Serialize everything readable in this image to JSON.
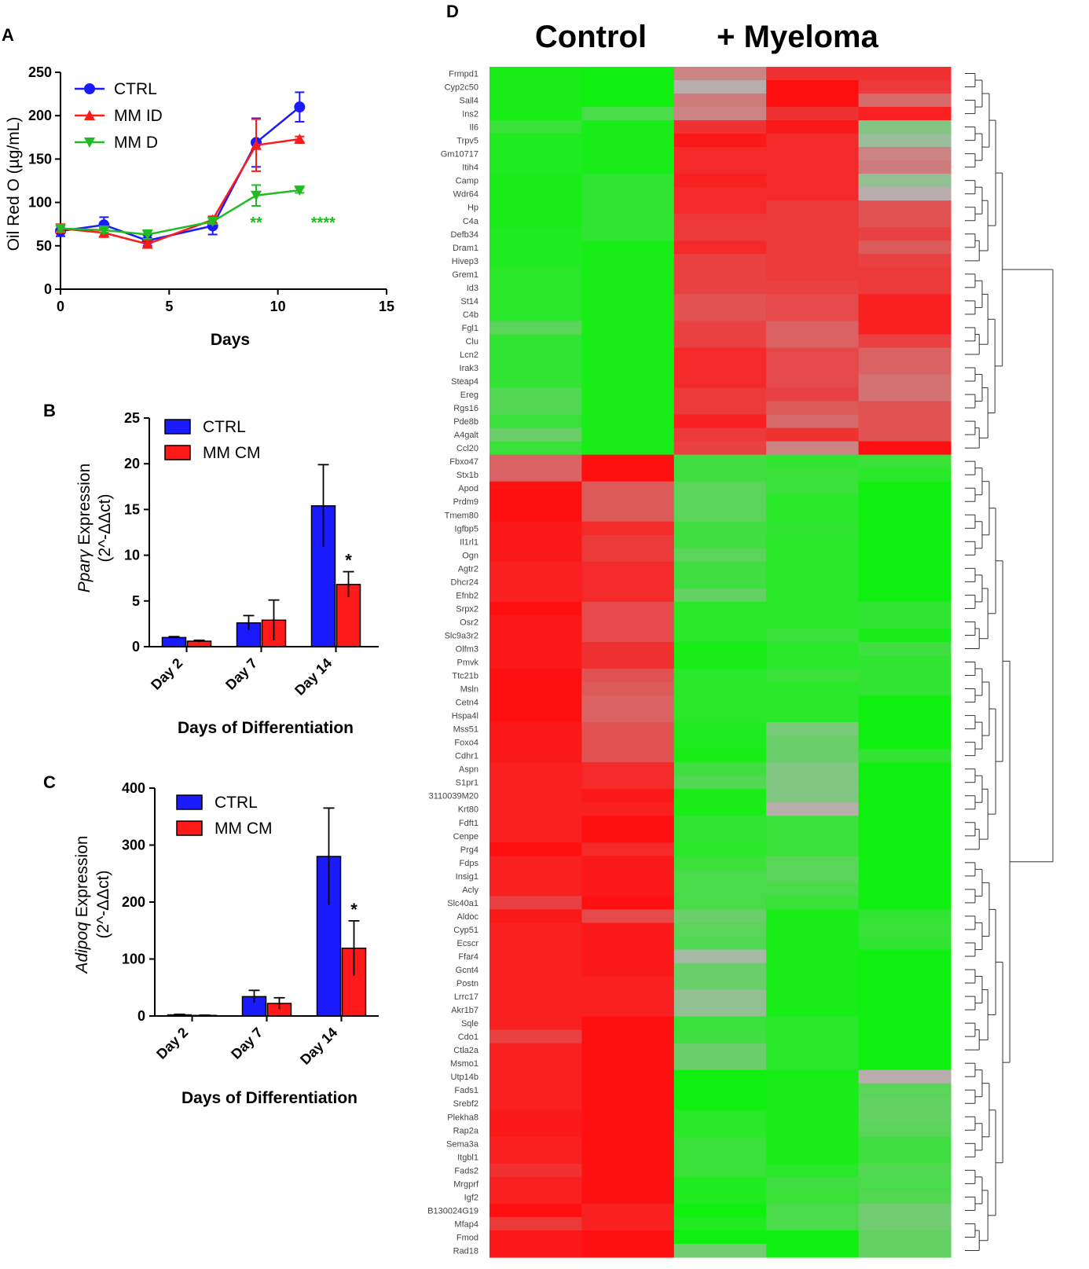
{
  "panel_labels": {
    "a": "A",
    "b": "B",
    "c": "C",
    "d": "D"
  },
  "colors": {
    "ctrl": "#1a1aff",
    "mm_id": "#ff1a1a",
    "mm_d": "#22bb22",
    "mm_cm": "#ff1a1a",
    "heat_high": "#ff1010",
    "heat_low": "#10f010",
    "heat_mid": "#b4b4b4"
  },
  "chart_data": [
    {
      "id": "A",
      "type": "line",
      "xlabel": "Days",
      "ylabel": "Oil Red O (µg/mL)",
      "xlim": [
        0,
        15
      ],
      "ylim": [
        0,
        250
      ],
      "xticks": [
        "0",
        "5",
        "10",
        "15"
      ],
      "yticks": [
        "0",
        "50",
        "100",
        "150",
        "200",
        "250"
      ],
      "series": [
        {
          "name": "CTRL",
          "x": [
            0,
            2,
            4,
            7,
            9,
            11
          ],
          "values": [
            67,
            74,
            56,
            73,
            169,
            210
          ],
          "err": [
            6,
            9,
            6,
            10,
            28,
            17
          ]
        },
        {
          "name": "MM ID",
          "x": [
            0,
            2,
            4,
            7,
            9,
            11
          ],
          "values": [
            70,
            65,
            52,
            80,
            166,
            173
          ],
          "err": [
            5,
            5,
            4,
            4,
            30,
            3
          ]
        },
        {
          "name": "MM D",
          "x": [
            0,
            2,
            4,
            7,
            9,
            11
          ],
          "values": [
            70,
            68,
            63,
            78,
            108,
            114
          ],
          "err": [
            4,
            3,
            5,
            3,
            12,
            3
          ]
        }
      ],
      "annotations": [
        {
          "x": 9,
          "text": "**"
        },
        {
          "x": 11,
          "text": "****"
        }
      ]
    },
    {
      "id": "B",
      "type": "bar",
      "xlabel": "Days of Differentiation",
      "ylabel_gene": "Pparγ",
      "ylabel_rest": " Expression",
      "ylabel_line2": "(2^-ΔΔct)",
      "ylim": [
        0,
        25
      ],
      "yticks": [
        "0",
        "5",
        "10",
        "15",
        "20",
        "25"
      ],
      "categories": [
        "Day 2",
        "Day 7",
        "Day 14"
      ],
      "series": [
        {
          "name": "CTRL",
          "values": [
            1.0,
            2.6,
            15.4
          ],
          "err": [
            0.1,
            0.8,
            4.5
          ]
        },
        {
          "name": "MM CM",
          "values": [
            0.6,
            2.9,
            6.8
          ],
          "err": [
            0.1,
            2.2,
            1.4
          ]
        }
      ],
      "annotations": [
        {
          "category": "Day 14",
          "text": "*"
        }
      ]
    },
    {
      "id": "C",
      "type": "bar",
      "xlabel": "Days of Differentiation",
      "ylabel_gene": "Adipoq",
      "ylabel_rest": " Expression",
      "ylabel_line2": "(2^-ΔΔct)",
      "ylim": [
        0,
        400
      ],
      "yticks": [
        "0",
        "100",
        "200",
        "300",
        "400"
      ],
      "categories": [
        "Day 2",
        "Day 7",
        "Day 14"
      ],
      "series": [
        {
          "name": "CTRL",
          "values": [
            2,
            34,
            280
          ],
          "err": [
            1,
            11,
            85
          ]
        },
        {
          "name": "MM CM",
          "values": [
            1,
            22,
            119
          ],
          "err": [
            0.5,
            10,
            48
          ]
        }
      ],
      "annotations": [
        {
          "category": "Day 14",
          "text": "*"
        }
      ]
    },
    {
      "id": "D",
      "type": "heatmap",
      "groups": [
        "Control",
        "+ Myeloma"
      ],
      "columns_per_group": [
        2,
        3
      ],
      "genes": [
        "Frmpd1",
        "Cyp2c50",
        "Sall4",
        "Ins2",
        "Il6",
        "Trpv5",
        "Gm10717",
        "Itih4",
        "Camp",
        "Wdr64",
        "Hp",
        "C4a",
        "Defb34",
        "Dram1",
        "Hivep3",
        "Grem1",
        "Id3",
        "St14",
        "C4b",
        "Fgl1",
        "Clu",
        "Lcn2",
        "Irak3",
        "Steap4",
        "Ereg",
        "Rgs16",
        "Pde8b",
        "A4galt",
        "Ccl20",
        "Fbxo47",
        "Stx1b",
        "Apod",
        "Prdm9",
        "Tmem80",
        "Igfbp5",
        "Il1rl1",
        "Ogn",
        "Agtr2",
        "Dhcr24",
        "Efnb2",
        "Srpx2",
        "Osr2",
        "Slc9a3r2",
        "Olfm3",
        "Pmvk",
        "Ttc21b",
        "Msln",
        "Cetn4",
        "Hspa4l",
        "Mss51",
        "Foxo4",
        "Cdhr1",
        "Aspn",
        "S1pr1",
        "3110039M20",
        "Krt80",
        "Fdft1",
        "Cenpe",
        "Prg4",
        "Fdps",
        "Insig1",
        "Acly",
        "Slc40a1",
        "Aldoc",
        "Cyp51",
        "Ecscr",
        "Ffar4",
        "Gcnt4",
        "Postn",
        "Lrrc17",
        "Akr1b7",
        "Sqle",
        "Cdo1",
        "Ctla2a",
        "Msmo1",
        "Utp14b",
        "Fads1",
        "Srebf2",
        "Plekha8",
        "Rap2a",
        "Sema3a",
        "Itgbl1",
        "Fads2",
        "Mrgprf",
        "Igf2",
        "B130024G19",
        "Mfap4",
        "Fmod",
        "Rad18"
      ],
      "values": [
        [
          -0.95,
          -1.0,
          0.3,
          0.8,
          0.8
        ],
        [
          -0.95,
          -1.0,
          0.05,
          1.0,
          0.75
        ],
        [
          -0.95,
          -1.0,
          0.35,
          1.0,
          0.45
        ],
        [
          -0.95,
          -0.65,
          0.3,
          0.8,
          0.9
        ],
        [
          -0.75,
          -0.95,
          0.8,
          0.95,
          -0.3
        ],
        [
          -0.9,
          -0.95,
          0.95,
          0.85,
          -0.15
        ],
        [
          -0.9,
          -0.95,
          0.85,
          0.85,
          0.3
        ],
        [
          -0.9,
          -0.95,
          0.85,
          0.85,
          0.35
        ],
        [
          -0.95,
          -0.8,
          0.9,
          0.85,
          -0.2
        ],
        [
          -0.95,
          -0.8,
          0.85,
          0.85,
          0.05
        ],
        [
          -0.95,
          -0.8,
          0.85,
          0.75,
          0.6
        ],
        [
          -0.95,
          -0.8,
          0.75,
          0.75,
          0.6
        ],
        [
          -0.9,
          -0.8,
          0.75,
          0.75,
          0.7
        ],
        [
          -0.9,
          -0.95,
          0.85,
          0.75,
          0.55
        ],
        [
          -0.9,
          -0.95,
          0.7,
          0.75,
          0.7
        ],
        [
          -0.85,
          -0.95,
          0.7,
          0.75,
          0.75
        ],
        [
          -0.85,
          -0.95,
          0.7,
          0.7,
          0.75
        ],
        [
          -0.85,
          -0.95,
          0.6,
          0.65,
          0.9
        ],
        [
          -0.85,
          -0.95,
          0.6,
          0.65,
          0.9
        ],
        [
          -0.55,
          -0.95,
          0.7,
          0.5,
          0.9
        ],
        [
          -0.8,
          -0.95,
          0.7,
          0.5,
          0.7
        ],
        [
          -0.8,
          -0.95,
          0.85,
          0.65,
          0.5
        ],
        [
          -0.8,
          -0.95,
          0.85,
          0.65,
          0.5
        ],
        [
          -0.8,
          -0.95,
          0.85,
          0.65,
          0.4
        ],
        [
          -0.6,
          -0.95,
          0.75,
          0.7,
          0.4
        ],
        [
          -0.6,
          -0.95,
          0.75,
          0.55,
          0.6
        ],
        [
          -0.75,
          -0.95,
          0.9,
          0.45,
          0.6
        ],
        [
          -0.45,
          -0.95,
          0.75,
          0.8,
          0.6
        ],
        [
          -0.75,
          -0.95,
          0.7,
          0.3,
          1.0
        ],
        [
          0.5,
          1.0,
          -0.7,
          -0.8,
          -0.75
        ],
        [
          0.5,
          1.0,
          -0.7,
          -0.75,
          -0.85
        ],
        [
          1.0,
          0.55,
          -0.55,
          -0.75,
          -1.0
        ],
        [
          1.0,
          0.55,
          -0.55,
          -0.85,
          -1.0
        ],
        [
          1.0,
          0.55,
          -0.55,
          -0.85,
          -1.0
        ],
        [
          0.95,
          0.85,
          -0.7,
          -0.8,
          -1.0
        ],
        [
          0.95,
          0.75,
          -0.7,
          -0.85,
          -1.0
        ],
        [
          0.95,
          0.75,
          -0.55,
          -0.85,
          -1.0
        ],
        [
          0.9,
          0.85,
          -0.7,
          -0.85,
          -1.0
        ],
        [
          0.9,
          0.85,
          -0.7,
          -0.85,
          -1.0
        ],
        [
          0.9,
          0.85,
          -0.5,
          -0.85,
          -1.0
        ],
        [
          1.0,
          0.65,
          -0.85,
          -0.85,
          -0.8
        ],
        [
          0.95,
          0.65,
          -0.85,
          -0.85,
          -0.8
        ],
        [
          0.95,
          0.65,
          -0.85,
          -0.75,
          -0.95
        ],
        [
          0.95,
          0.8,
          -0.95,
          -0.85,
          -0.7
        ],
        [
          0.95,
          0.8,
          -0.95,
          -0.85,
          -0.8
        ],
        [
          1.0,
          0.6,
          -0.85,
          -0.75,
          -0.8
        ],
        [
          1.0,
          0.55,
          -0.85,
          -0.85,
          -0.8
        ],
        [
          1.0,
          0.5,
          -0.85,
          -0.85,
          -1.0
        ],
        [
          1.0,
          0.5,
          -0.85,
          -0.85,
          -1.0
        ],
        [
          0.95,
          0.6,
          -0.9,
          -0.35,
          -1.0
        ],
        [
          0.95,
          0.6,
          -0.9,
          -0.45,
          -1.0
        ],
        [
          0.95,
          0.6,
          -0.95,
          -0.45,
          -0.8
        ],
        [
          0.9,
          0.85,
          -0.7,
          -0.3,
          -1.0
        ],
        [
          0.9,
          0.85,
          -0.6,
          -0.3,
          -1.0
        ],
        [
          0.9,
          0.95,
          -0.95,
          -0.3,
          -1.0
        ],
        [
          0.9,
          0.9,
          -0.95,
          0.05,
          -1.0
        ],
        [
          0.9,
          1.0,
          -0.8,
          -0.75,
          -1.0
        ],
        [
          0.9,
          1.0,
          -0.8,
          -0.75,
          -1.0
        ],
        [
          1.0,
          0.85,
          -0.85,
          -0.75,
          -1.0
        ],
        [
          0.9,
          0.95,
          -0.75,
          -0.55,
          -1.0
        ],
        [
          0.9,
          0.95,
          -0.65,
          -0.55,
          -1.0
        ],
        [
          0.9,
          0.95,
          -0.65,
          -0.65,
          -1.0
        ],
        [
          0.7,
          1.0,
          -0.65,
          -0.75,
          -1.0
        ],
        [
          0.95,
          0.65,
          -0.45,
          -0.95,
          -0.8
        ],
        [
          0.9,
          0.95,
          -0.55,
          -0.95,
          -0.75
        ],
        [
          0.9,
          0.95,
          -0.6,
          -0.95,
          -0.8
        ],
        [
          0.9,
          0.95,
          -0.1,
          -0.95,
          -1.0
        ],
        [
          0.9,
          0.95,
          -0.45,
          -0.95,
          -1.0
        ],
        [
          0.9,
          0.9,
          -0.45,
          -0.95,
          -1.0
        ],
        [
          0.9,
          0.9,
          -0.2,
          -0.95,
          -1.0
        ],
        [
          0.9,
          0.9,
          -0.2,
          -0.95,
          -1.0
        ],
        [
          0.9,
          1.0,
          -0.75,
          -0.85,
          -1.0
        ],
        [
          0.7,
          1.0,
          -0.7,
          -0.85,
          -1.0
        ],
        [
          0.9,
          1.0,
          -0.45,
          -0.85,
          -1.0
        ],
        [
          0.9,
          1.0,
          -0.45,
          -0.85,
          -1.0
        ],
        [
          0.9,
          1.0,
          -1.0,
          -0.95,
          0.05
        ],
        [
          0.9,
          1.0,
          -1.0,
          -0.95,
          -0.55
        ],
        [
          0.9,
          1.0,
          -1.0,
          -0.95,
          -0.5
        ],
        [
          0.95,
          1.0,
          -0.85,
          -0.95,
          -0.5
        ],
        [
          0.95,
          1.0,
          -0.85,
          -0.95,
          -0.55
        ],
        [
          0.9,
          1.0,
          -0.75,
          -0.95,
          -0.7
        ],
        [
          0.9,
          1.0,
          -0.75,
          -0.95,
          -0.7
        ],
        [
          0.8,
          1.0,
          -0.75,
          -0.85,
          -0.6
        ],
        [
          0.9,
          1.0,
          -0.9,
          -0.7,
          -0.65
        ],
        [
          0.9,
          1.0,
          -0.9,
          -0.75,
          -0.6
        ],
        [
          1.0,
          0.9,
          -1.0,
          -0.65,
          -0.4
        ],
        [
          0.75,
          0.9,
          -0.9,
          -0.65,
          -0.4
        ],
        [
          0.95,
          1.0,
          -1.0,
          -1.0,
          -0.5
        ],
        [
          0.95,
          1.0,
          -0.4,
          -1.0,
          -0.5
        ]
      ]
    }
  ]
}
